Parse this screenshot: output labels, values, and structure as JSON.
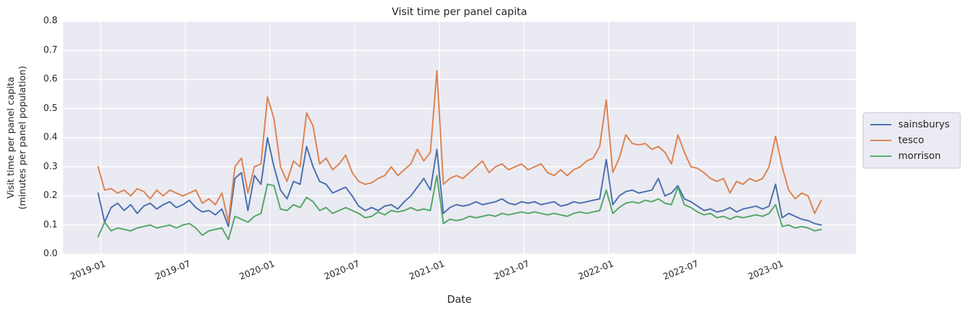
{
  "chart_data": {
    "type": "line",
    "title": "Visit time per panel capita",
    "xlabel": "Date",
    "ylabel_lines": [
      "Visit time per panel capita",
      "(minutes per panel population)"
    ],
    "ylim": [
      0.0,
      0.8
    ],
    "y_ticks": [
      {
        "v": 0.0,
        "label": "0.0"
      },
      {
        "v": 0.1,
        "label": "0.1"
      },
      {
        "v": 0.2,
        "label": "0.2"
      },
      {
        "v": 0.3,
        "label": "0.3"
      },
      {
        "v": 0.4,
        "label": "0.4"
      },
      {
        "v": 0.5,
        "label": "0.5"
      },
      {
        "v": 0.6,
        "label": "0.6"
      },
      {
        "v": 0.7,
        "label": "0.7"
      },
      {
        "v": 0.8,
        "label": "0.8"
      }
    ],
    "x_ticks": [
      {
        "t": 2019.0,
        "label": "2019-01"
      },
      {
        "t": 2019.5,
        "label": "2019-07"
      },
      {
        "t": 2020.0,
        "label": "2020-01"
      },
      {
        "t": 2020.5,
        "label": "2020-07"
      },
      {
        "t": 2021.0,
        "label": "2021-01"
      },
      {
        "t": 2021.5,
        "label": "2021-07"
      },
      {
        "t": 2022.0,
        "label": "2022-01"
      },
      {
        "t": 2022.5,
        "label": "2022-07"
      },
      {
        "t": 2023.0,
        "label": "2023-01"
      }
    ],
    "x_range_shown": [
      2018.78,
      2023.46
    ],
    "grid": true,
    "plot_background": "#eaeaf2",
    "gridline_color": "#ffffff",
    "x": {
      "start_decimal_year": 2018.985,
      "step_decimal_year": 0.03846,
      "count": 112,
      "sampling": "biweekly"
    },
    "series": [
      {
        "name": "sainsburys",
        "color": "#4c72b0",
        "values": [
          0.21,
          0.11,
          0.16,
          0.175,
          0.15,
          0.17,
          0.14,
          0.165,
          0.175,
          0.155,
          0.17,
          0.18,
          0.16,
          0.17,
          0.185,
          0.16,
          0.145,
          0.15,
          0.135,
          0.155,
          0.095,
          0.26,
          0.28,
          0.15,
          0.27,
          0.24,
          0.4,
          0.3,
          0.22,
          0.19,
          0.25,
          0.24,
          0.37,
          0.3,
          0.25,
          0.24,
          0.21,
          0.22,
          0.23,
          0.2,
          0.165,
          0.15,
          0.16,
          0.15,
          0.165,
          0.17,
          0.155,
          0.18,
          0.2,
          0.23,
          0.26,
          0.22,
          0.36,
          0.14,
          0.16,
          0.17,
          0.165,
          0.17,
          0.18,
          0.17,
          0.175,
          0.18,
          0.19,
          0.175,
          0.17,
          0.18,
          0.175,
          0.18,
          0.17,
          0.175,
          0.18,
          0.165,
          0.17,
          0.18,
          0.175,
          0.18,
          0.185,
          0.19,
          0.325,
          0.17,
          0.2,
          0.215,
          0.22,
          0.21,
          0.215,
          0.22,
          0.26,
          0.2,
          0.21,
          0.235,
          0.19,
          0.18,
          0.165,
          0.15,
          0.155,
          0.145,
          0.15,
          0.16,
          0.145,
          0.155,
          0.16,
          0.165,
          0.155,
          0.165,
          0.24,
          0.125,
          0.14,
          0.13,
          0.12,
          0.115,
          0.105,
          0.1
        ]
      },
      {
        "name": "tesco",
        "color": "#dd8452",
        "values": [
          0.3,
          0.22,
          0.225,
          0.21,
          0.22,
          0.2,
          0.225,
          0.215,
          0.19,
          0.22,
          0.2,
          0.22,
          0.21,
          0.2,
          0.21,
          0.22,
          0.175,
          0.19,
          0.17,
          0.21,
          0.11,
          0.3,
          0.33,
          0.21,
          0.3,
          0.31,
          0.54,
          0.465,
          0.3,
          0.25,
          0.32,
          0.3,
          0.485,
          0.44,
          0.31,
          0.33,
          0.29,
          0.31,
          0.34,
          0.28,
          0.25,
          0.24,
          0.245,
          0.26,
          0.27,
          0.3,
          0.27,
          0.29,
          0.31,
          0.36,
          0.32,
          0.35,
          0.63,
          0.24,
          0.26,
          0.27,
          0.26,
          0.28,
          0.3,
          0.32,
          0.28,
          0.3,
          0.31,
          0.29,
          0.3,
          0.31,
          0.29,
          0.3,
          0.31,
          0.28,
          0.27,
          0.29,
          0.27,
          0.29,
          0.3,
          0.32,
          0.33,
          0.37,
          0.53,
          0.28,
          0.33,
          0.41,
          0.38,
          0.375,
          0.38,
          0.36,
          0.37,
          0.35,
          0.31,
          0.41,
          0.35,
          0.3,
          0.295,
          0.28,
          0.26,
          0.25,
          0.26,
          0.21,
          0.25,
          0.24,
          0.26,
          0.25,
          0.26,
          0.3,
          0.405,
          0.3,
          0.22,
          0.19,
          0.21,
          0.2,
          0.14,
          0.185
        ]
      },
      {
        "name": "morrison",
        "color": "#55a868",
        "values": [
          0.06,
          0.11,
          0.08,
          0.09,
          0.085,
          0.08,
          0.09,
          0.095,
          0.1,
          0.09,
          0.095,
          0.1,
          0.09,
          0.1,
          0.105,
          0.09,
          0.065,
          0.08,
          0.085,
          0.09,
          0.05,
          0.13,
          0.12,
          0.11,
          0.13,
          0.14,
          0.24,
          0.235,
          0.155,
          0.15,
          0.17,
          0.16,
          0.195,
          0.18,
          0.15,
          0.16,
          0.14,
          0.15,
          0.16,
          0.15,
          0.14,
          0.125,
          0.13,
          0.145,
          0.135,
          0.15,
          0.145,
          0.15,
          0.16,
          0.15,
          0.155,
          0.15,
          0.27,
          0.105,
          0.12,
          0.115,
          0.12,
          0.13,
          0.125,
          0.13,
          0.135,
          0.13,
          0.14,
          0.135,
          0.14,
          0.145,
          0.14,
          0.145,
          0.14,
          0.135,
          0.14,
          0.135,
          0.13,
          0.14,
          0.145,
          0.14,
          0.145,
          0.15,
          0.22,
          0.14,
          0.16,
          0.175,
          0.18,
          0.175,
          0.185,
          0.18,
          0.19,
          0.175,
          0.17,
          0.23,
          0.17,
          0.16,
          0.145,
          0.135,
          0.14,
          0.125,
          0.13,
          0.12,
          0.13,
          0.125,
          0.13,
          0.135,
          0.13,
          0.14,
          0.17,
          0.095,
          0.1,
          0.09,
          0.095,
          0.09,
          0.08,
          0.085
        ]
      }
    ],
    "legend": {
      "position": "center right, outside plot",
      "entries": [
        "sainsburys",
        "tesco",
        "morrison"
      ]
    }
  }
}
